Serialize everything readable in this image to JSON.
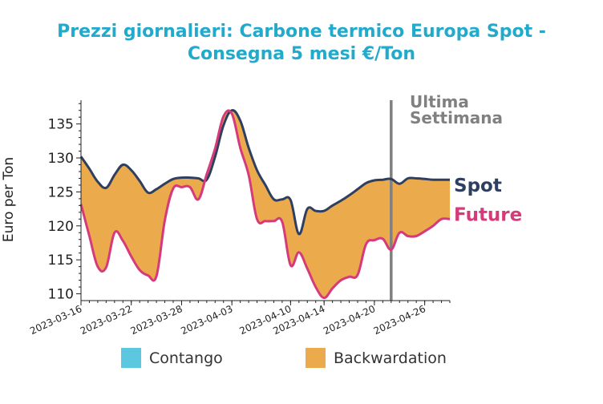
{
  "chart_data": {
    "type": "area",
    "title_lines": [
      "Prezzi giornalieri: Carbone termico Europa Spot -",
      "Consegna 5 mesi €/Ton"
    ],
    "ylabel": "Euro per Ton",
    "xlabel": "",
    "ylim": [
      109,
      138.5
    ],
    "yticks": [
      110,
      115,
      120,
      125,
      130,
      135
    ],
    "xlim": [
      "2023-03-16",
      "2023-04-29"
    ],
    "xticks": [
      "2023-03-16",
      "2023-03-22",
      "2023-03-28",
      "2023-04-03",
      "2023-04-10",
      "2023-04-14",
      "2023-04-20",
      "2023-04-26"
    ],
    "grid": false,
    "legend_position": "bottom",
    "series": [
      {
        "name": "Spot",
        "color": "#2e3f5f",
        "x": [
          "2023-03-16",
          "2023-03-17",
          "2023-03-18",
          "2023-03-19",
          "2023-03-20",
          "2023-03-21",
          "2023-03-22",
          "2023-03-23",
          "2023-03-24",
          "2023-03-25",
          "2023-03-26",
          "2023-03-27",
          "2023-03-28",
          "2023-03-29",
          "2023-03-30",
          "2023-03-31",
          "2023-04-01",
          "2023-04-02",
          "2023-04-03",
          "2023-04-04",
          "2023-04-05",
          "2023-04-06",
          "2023-04-07",
          "2023-04-08",
          "2023-04-09",
          "2023-04-10",
          "2023-04-11",
          "2023-04-12",
          "2023-04-13",
          "2023-04-14",
          "2023-04-15",
          "2023-04-16",
          "2023-04-17",
          "2023-04-18",
          "2023-04-19",
          "2023-04-20",
          "2023-04-21",
          "2023-04-22",
          "2023-04-23",
          "2023-04-24",
          "2023-04-25",
          "2023-04-26",
          "2023-04-27",
          "2023-04-28",
          "2023-04-29"
        ],
        "values": [
          130.2,
          128.4,
          126.5,
          125.6,
          127.5,
          129.0,
          128.2,
          126.6,
          124.9,
          125.4,
          126.2,
          126.9,
          127.1,
          127.1,
          127.0,
          126.8,
          130.2,
          134.8,
          137.0,
          135.5,
          131.5,
          128.2,
          126.0,
          123.9,
          123.9,
          123.8,
          118.8,
          122.5,
          122.2,
          122.2,
          123.0,
          123.7,
          124.5,
          125.4,
          126.3,
          126.7,
          126.8,
          126.9,
          126.2,
          127.0,
          127.0,
          126.9,
          126.8,
          126.8,
          126.8
        ]
      },
      {
        "name": "Future",
        "color": "#d63a7a",
        "x": [
          "2023-03-16",
          "2023-03-17",
          "2023-03-18",
          "2023-03-19",
          "2023-03-20",
          "2023-03-21",
          "2023-03-22",
          "2023-03-23",
          "2023-03-24",
          "2023-03-25",
          "2023-03-26",
          "2023-03-27",
          "2023-03-28",
          "2023-03-29",
          "2023-03-30",
          "2023-03-31",
          "2023-04-01",
          "2023-04-02",
          "2023-04-03",
          "2023-04-04",
          "2023-04-05",
          "2023-04-06",
          "2023-04-07",
          "2023-04-08",
          "2023-04-09",
          "2023-04-10",
          "2023-04-11",
          "2023-04-12",
          "2023-04-13",
          "2023-04-14",
          "2023-04-15",
          "2023-04-16",
          "2023-04-17",
          "2023-04-18",
          "2023-04-19",
          "2023-04-20",
          "2023-04-21",
          "2023-04-22",
          "2023-04-23",
          "2023-04-24",
          "2023-04-25",
          "2023-04-26",
          "2023-04-27",
          "2023-04-28",
          "2023-04-29"
        ],
        "values": [
          123.2,
          118.5,
          114.0,
          113.9,
          119.0,
          117.8,
          115.5,
          113.5,
          112.7,
          112.6,
          120.8,
          125.5,
          125.7,
          125.7,
          123.9,
          127.6,
          131.4,
          136.1,
          136.5,
          131.5,
          127.5,
          121.0,
          120.7,
          120.7,
          120.6,
          114.2,
          116.1,
          113.7,
          111.0,
          109.4,
          110.8,
          112.0,
          112.5,
          112.8,
          117.3,
          117.9,
          118.1,
          116.5,
          119.0,
          118.5,
          118.5,
          119.2,
          120.0,
          121.0,
          121.0
        ]
      }
    ],
    "fill_between": {
      "Backwardation": {
        "color": "#ebaa4c",
        "when": "Spot > Future"
      },
      "Contango": {
        "color": "#5bc8e0",
        "when": "Spot < Future"
      }
    },
    "legend": [
      {
        "label": "Contango",
        "color": "#5bc8e0"
      },
      {
        "label": "Backwardation",
        "color": "#ebaa4c"
      }
    ],
    "annotations": {
      "marker_date": "2023-04-22",
      "marker_color": "#808080",
      "marker_label_lines": [
        "Ultima",
        "Settimana"
      ]
    }
  }
}
